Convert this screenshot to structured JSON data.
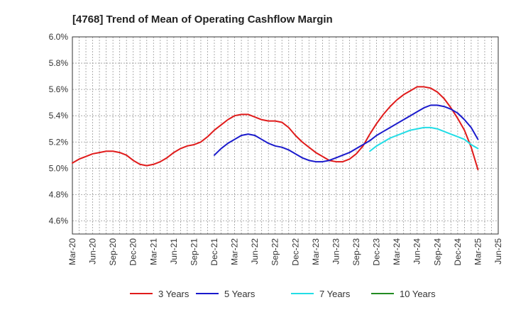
{
  "chart_data": {
    "type": "line",
    "title": "[4768]  Trend of Mean of Operating Cashflow Margin",
    "xlabel": "",
    "ylabel": "",
    "ylim": [
      4.5,
      6.0
    ],
    "y_ticks": [
      4.6,
      4.8,
      5.0,
      5.2,
      5.4,
      5.6,
      5.8,
      6.0
    ],
    "y_tick_labels": [
      "4.6%",
      "4.8%",
      "5.0%",
      "5.2%",
      "5.4%",
      "5.6%",
      "5.8%",
      "6.0%"
    ],
    "x_start": "Mar-20",
    "x_end": "Jun-25",
    "x_tick_labels": [
      "Mar-20",
      "Jun-20",
      "Sep-20",
      "Dec-20",
      "Mar-21",
      "Jun-21",
      "Sep-21",
      "Dec-21",
      "Mar-22",
      "Jun-22",
      "Sep-22",
      "Dec-22",
      "Mar-23",
      "Jun-23",
      "Sep-23",
      "Dec-23",
      "Mar-24",
      "Jun-24",
      "Sep-24",
      "Dec-24",
      "Mar-25",
      "Jun-25"
    ],
    "grid": true,
    "legend_position": "bottom",
    "series": [
      {
        "name": "3 Years",
        "color": "#e01b1b",
        "x": [
          "Mar-20",
          "Apr-20",
          "May-20",
          "Jun-20",
          "Jul-20",
          "Aug-20",
          "Sep-20",
          "Oct-20",
          "Nov-20",
          "Dec-20",
          "Jan-21",
          "Feb-21",
          "Mar-21",
          "Apr-21",
          "May-21",
          "Jun-21",
          "Jul-21",
          "Aug-21",
          "Sep-21",
          "Oct-21",
          "Nov-21",
          "Dec-21",
          "Jan-22",
          "Feb-22",
          "Mar-22",
          "Apr-22",
          "May-22",
          "Jun-22",
          "Jul-22",
          "Aug-22",
          "Sep-22",
          "Oct-22",
          "Nov-22",
          "Dec-22",
          "Jan-23",
          "Feb-23",
          "Mar-23",
          "Apr-23",
          "May-23",
          "Jun-23",
          "Jul-23",
          "Aug-23",
          "Sep-23",
          "Oct-23",
          "Nov-23",
          "Dec-23",
          "Jan-24",
          "Feb-24",
          "Mar-24",
          "Apr-24",
          "May-24",
          "Jun-24",
          "Jul-24",
          "Aug-24",
          "Sep-24",
          "Oct-24",
          "Nov-24",
          "Dec-24",
          "Jan-25",
          "Feb-25",
          "Mar-25"
        ],
        "values": [
          5.04,
          5.07,
          5.09,
          5.11,
          5.12,
          5.13,
          5.13,
          5.12,
          5.1,
          5.06,
          5.03,
          5.02,
          5.03,
          5.05,
          5.08,
          5.12,
          5.15,
          5.17,
          5.18,
          5.2,
          5.24,
          5.29,
          5.33,
          5.37,
          5.4,
          5.41,
          5.41,
          5.39,
          5.37,
          5.36,
          5.36,
          5.35,
          5.31,
          5.25,
          5.2,
          5.16,
          5.12,
          5.09,
          5.06,
          5.05,
          5.05,
          5.07,
          5.11,
          5.17,
          5.26,
          5.34,
          5.41,
          5.47,
          5.52,
          5.56,
          5.59,
          5.62,
          5.62,
          5.61,
          5.58,
          5.53,
          5.46,
          5.38,
          5.29,
          5.16,
          4.99
        ]
      },
      {
        "name": "5 Years",
        "color": "#1a1acc",
        "x": [
          "Dec-21",
          "Jan-22",
          "Feb-22",
          "Mar-22",
          "Apr-22",
          "May-22",
          "Jun-22",
          "Jul-22",
          "Aug-22",
          "Sep-22",
          "Oct-22",
          "Nov-22",
          "Dec-22",
          "Jan-23",
          "Feb-23",
          "Mar-23",
          "Apr-23",
          "May-23",
          "Jun-23",
          "Jul-23",
          "Aug-23",
          "Sep-23",
          "Oct-23",
          "Nov-23",
          "Dec-23",
          "Jan-24",
          "Feb-24",
          "Mar-24",
          "Apr-24",
          "May-24",
          "Jun-24",
          "Jul-24",
          "Aug-24",
          "Sep-24",
          "Oct-24",
          "Nov-24",
          "Dec-24",
          "Jan-25",
          "Feb-25",
          "Mar-25"
        ],
        "values": [
          5.1,
          5.15,
          5.19,
          5.22,
          5.25,
          5.26,
          5.25,
          5.22,
          5.19,
          5.17,
          5.16,
          5.14,
          5.11,
          5.08,
          5.06,
          5.05,
          5.05,
          5.06,
          5.08,
          5.1,
          5.12,
          5.15,
          5.18,
          5.21,
          5.25,
          5.28,
          5.31,
          5.34,
          5.37,
          5.4,
          5.43,
          5.46,
          5.48,
          5.48,
          5.47,
          5.45,
          5.42,
          5.37,
          5.31,
          5.22
        ]
      },
      {
        "name": "7 Years",
        "color": "#22dde6",
        "x": [
          "Nov-23",
          "Dec-23",
          "Jan-24",
          "Feb-24",
          "Mar-24",
          "Apr-24",
          "May-24",
          "Jun-24",
          "Jul-24",
          "Aug-24",
          "Sep-24",
          "Oct-24",
          "Nov-24",
          "Dec-24",
          "Jan-25",
          "Feb-25",
          "Mar-25"
        ],
        "values": [
          5.13,
          5.17,
          5.2,
          5.23,
          5.25,
          5.27,
          5.29,
          5.3,
          5.31,
          5.31,
          5.3,
          5.28,
          5.26,
          5.24,
          5.22,
          5.18,
          5.15
        ]
      },
      {
        "name": "10 Years",
        "color": "#228b22",
        "x": [],
        "values": []
      }
    ]
  }
}
